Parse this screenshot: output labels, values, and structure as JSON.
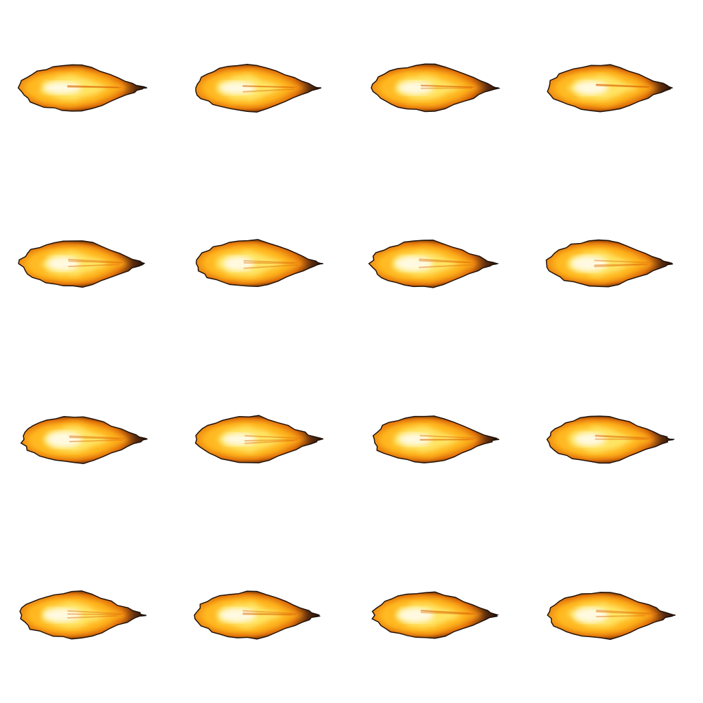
{
  "sprite_sheet": {
    "kind": "muzzle-flash fireball animation sheet",
    "rows": 4,
    "cols": 4,
    "frame_count": 16,
    "background": "#ffffff",
    "colors": {
      "core": "#fffbe8",
      "hot": "#ffe96a",
      "mid": "#ffb51e",
      "outer": "#e0700c",
      "rim": "#5a2c10",
      "edge": "#1e1008"
    },
    "frames": [
      {
        "id": 1
      },
      {
        "id": 2
      },
      {
        "id": 3
      },
      {
        "id": 4
      },
      {
        "id": 5
      },
      {
        "id": 6
      },
      {
        "id": 7
      },
      {
        "id": 8
      },
      {
        "id": 9
      },
      {
        "id": 10
      },
      {
        "id": 11
      },
      {
        "id": 12
      },
      {
        "id": 13
      },
      {
        "id": 14
      },
      {
        "id": 15
      },
      {
        "id": 16
      }
    ]
  }
}
